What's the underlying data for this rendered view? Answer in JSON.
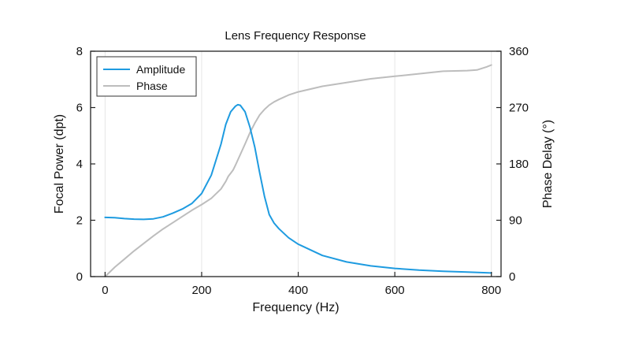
{
  "chart_data": {
    "type": "line",
    "title": "Lens Frequency Response",
    "xlabel": "Frequency (Hz)",
    "ylabel": "Focal Power (dpt)",
    "y2label": "Phase Delay (°)",
    "xlim": [
      -30,
      820
    ],
    "ylim": [
      0,
      8
    ],
    "y2lim": [
      0,
      360
    ],
    "xticks": [
      0,
      200,
      400,
      600,
      800
    ],
    "yticks": [
      0,
      2,
      4,
      6,
      8
    ],
    "y2ticks": [
      0,
      90,
      180,
      270,
      360
    ],
    "grid": "vertical",
    "legend_position": "top-left",
    "series": [
      {
        "name": "Amplitude",
        "axis": "left",
        "color": "#1E9BE0",
        "x": [
          0,
          20,
          40,
          60,
          80,
          100,
          120,
          140,
          160,
          180,
          200,
          220,
          240,
          250,
          260,
          270,
          275,
          280,
          290,
          300,
          310,
          320,
          330,
          340,
          350,
          360,
          380,
          400,
          450,
          500,
          550,
          600,
          650,
          700,
          750,
          800
        ],
        "y": [
          2.1,
          2.09,
          2.06,
          2.04,
          2.03,
          2.05,
          2.12,
          2.25,
          2.4,
          2.6,
          2.95,
          3.6,
          4.7,
          5.4,
          5.85,
          6.05,
          6.1,
          6.08,
          5.85,
          5.3,
          4.6,
          3.7,
          2.85,
          2.2,
          1.9,
          1.7,
          1.38,
          1.15,
          0.75,
          0.52,
          0.38,
          0.29,
          0.23,
          0.19,
          0.16,
          0.13
        ]
      },
      {
        "name": "Phase",
        "axis": "right",
        "color": "#BDBDBD",
        "x": [
          0,
          20,
          40,
          60,
          80,
          100,
          120,
          140,
          160,
          180,
          200,
          220,
          240,
          250,
          255,
          260,
          265,
          270,
          280,
          290,
          300,
          310,
          320,
          330,
          340,
          350,
          360,
          380,
          400,
          450,
          500,
          550,
          600,
          650,
          700,
          750,
          770,
          790,
          800
        ],
        "y": [
          0,
          15,
          28,
          41,
          53,
          65,
          76,
          86,
          96,
          106,
          115,
          125,
          140,
          152,
          160,
          165,
          170,
          178,
          195,
          212,
          230,
          245,
          258,
          267,
          274,
          279,
          283,
          290,
          295,
          304,
          310,
          316,
          320,
          324,
          328,
          329,
          330,
          335,
          338
        ]
      }
    ]
  }
}
